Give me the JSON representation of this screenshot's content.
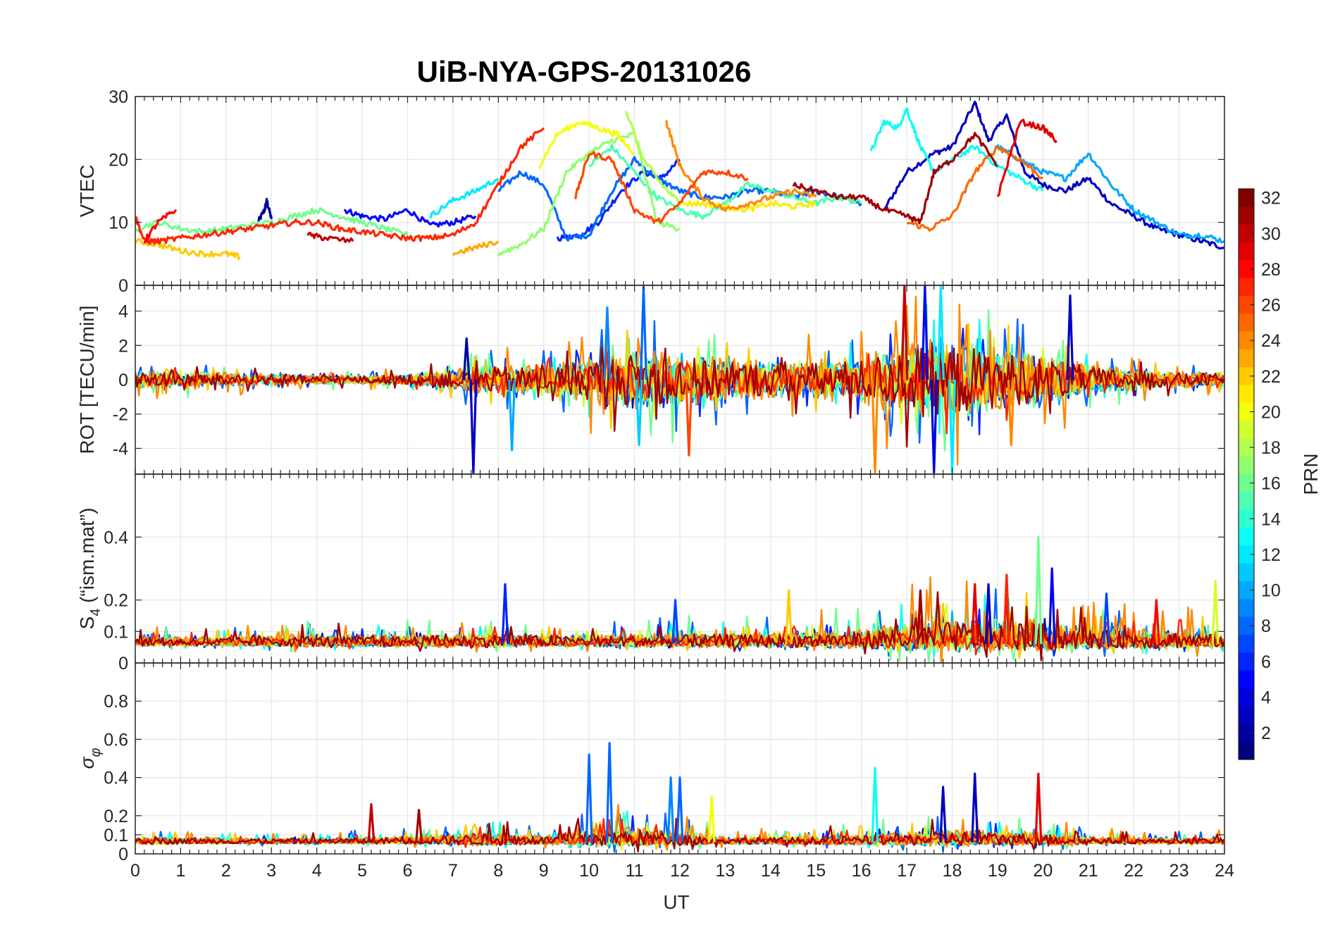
{
  "chart_data": {
    "type": "line",
    "title": "UiB-NYA-GPS-20131026",
    "xlabel": "UT",
    "xlim": [
      0,
      24
    ],
    "xticks": [
      "0",
      "1",
      "2",
      "3",
      "4",
      "5",
      "6",
      "7",
      "8",
      "9",
      "10",
      "11",
      "12",
      "13",
      "14",
      "15",
      "16",
      "17",
      "18",
      "19",
      "20",
      "21",
      "22",
      "23",
      "24"
    ],
    "grid": true,
    "panels": [
      {
        "id": "vtec",
        "ylabel": "VTEC",
        "ylim": [
          0,
          30
        ],
        "yticks": [
          0,
          10,
          20,
          30
        ],
        "ytick_labels": [
          "0",
          "10",
          "20",
          "30"
        ],
        "series": [
          {
            "prn": 2,
            "x": [
              2.7,
              2.85,
              2.9,
              3.0
            ],
            "y": [
              10,
              12,
              13.5,
              10.5
            ]
          },
          {
            "prn": 3,
            "x": [
              16.5,
              17,
              17.6,
              18,
              18.5,
              18.8,
              19.2,
              19.6,
              20,
              20.5,
              21,
              21.5,
              22,
              22.5,
              23,
              23.5,
              24
            ],
            "y": [
              12,
              18,
              21,
              22,
              29,
              23,
              27,
              18,
              16,
              15,
              17,
              13,
              11,
              9,
              8,
              7,
              6
            ]
          },
          {
            "prn": 5,
            "x": [
              4.6,
              5,
              5.5,
              6,
              6.5,
              7,
              7.5
            ],
            "y": [
              12,
              11,
              10.5,
              12,
              9.5,
              10,
              11
            ]
          },
          {
            "prn": 6,
            "x": [
              9.3,
              9.8,
              10.2,
              10.7,
              11.2,
              11.6,
              12
            ],
            "y": [
              7.5,
              8,
              10,
              15,
              18,
              17,
              20
            ]
          },
          {
            "prn": 8,
            "x": [
              8,
              8.5,
              9,
              9.5,
              10,
              10.5,
              11,
              11.5,
              12,
              12.5,
              13,
              13.5,
              14,
              14.5,
              15,
              15.5,
              16
            ],
            "y": [
              15,
              18,
              16,
              7.5,
              8,
              15,
              20,
              17,
              15,
              14,
              14,
              15,
              15,
              14,
              15,
              14,
              13
            ]
          },
          {
            "prn": 10,
            "x": [
              19,
              19.5,
              20,
              20.5,
              21,
              21.5,
              22,
              22.5,
              23,
              23.5,
              24
            ],
            "y": [
              22,
              20,
              18,
              17,
              21,
              16,
              12,
              10,
              8,
              8,
              7
            ]
          },
          {
            "prn": 12,
            "x": [
              6.5,
              7,
              7.5,
              8
            ],
            "y": [
              11,
              13.5,
              15,
              17
            ]
          },
          {
            "prn": 13,
            "x": [
              16.2,
              16.5,
              16.8,
              17,
              17.3,
              17.6,
              18,
              18.5,
              19,
              19.5,
              20
            ],
            "y": [
              21,
              26,
              25,
              28,
              22,
              18,
              20,
              22,
              19,
              17,
              15
            ]
          },
          {
            "prn": 15,
            "x": [
              10,
              10.5,
              11,
              11.5,
              12,
              12.5,
              13,
              13.5,
              14,
              14.5,
              15,
              15.5,
              16
            ],
            "y": [
              19,
              22,
              18,
              14,
              12,
              11,
              13,
              16,
              15,
              14,
              13,
              14,
              13
            ]
          },
          {
            "prn": 16,
            "x": [
              0,
              0.5,
              1,
              1.5,
              2,
              2.5,
              3,
              3.5,
              4,
              4.5,
              5,
              5.5,
              6
            ],
            "y": [
              9,
              10,
              9,
              8.5,
              9,
              9.5,
              10,
              11,
              12,
              11,
              10,
              9,
              8
            ]
          },
          {
            "prn": 17,
            "x": [
              8,
              8.5,
              9,
              9.5,
              10,
              10.5,
              11,
              11.5,
              12
            ],
            "y": [
              5,
              6.5,
              9,
              18,
              21,
              23,
              24,
              10,
              9
            ]
          },
          {
            "prn": 18,
            "x": [
              10.8,
              11.2,
              11.6,
              12
            ],
            "y": [
              28,
              20,
              16,
              13
            ]
          },
          {
            "prn": 20,
            "x": [
              8.9,
              9.3,
              9.8,
              10.2,
              10.6,
              11
            ],
            "y": [
              19,
              24,
              26,
              25,
              24,
              21
            ]
          },
          {
            "prn": 21,
            "x": [
              12,
              12.5,
              13,
              13.5,
              14,
              14.5,
              15
            ],
            "y": [
              13,
              13,
              12.5,
              12,
              13,
              12.5,
              13
            ]
          },
          {
            "prn": 22,
            "x": [
              0,
              0.5,
              1,
              1.5,
              2,
              2.3
            ],
            "y": [
              7,
              6.5,
              5.5,
              5,
              5,
              4.5
            ]
          },
          {
            "prn": 23,
            "x": [
              7,
              7.5,
              8
            ],
            "y": [
              5,
              6,
              7
            ]
          },
          {
            "prn": 24,
            "x": [
              11.7,
              12,
              12.5,
              13,
              13.5,
              14,
              14.5,
              15
            ],
            "y": [
              26,
              19,
              14,
              12,
              13,
              14,
              15,
              14
            ]
          },
          {
            "prn": 25,
            "x": [
              17,
              17.5,
              18,
              18.5,
              19,
              19.5,
              20
            ],
            "y": [
              10,
              9,
              11,
              18,
              22,
              20,
              17
            ]
          },
          {
            "prn": 26,
            "x": [
              9.7,
              10,
              10.5,
              11,
              11.5,
              12,
              12.5,
              13,
              13.5
            ],
            "y": [
              14,
              21,
              20,
              12,
              10,
              13,
              18,
              18,
              17
            ]
          },
          {
            "prn": 27,
            "x": [
              0,
              0.2,
              0.5,
              1,
              1.5,
              2,
              2.5,
              3,
              3.5,
              4,
              4.5,
              5,
              5.5,
              6,
              6.5,
              7,
              7.5,
              8,
              8.5,
              9
            ],
            "y": [
              11,
              7,
              7,
              7.5,
              8,
              8.5,
              9,
              9.5,
              10,
              10,
              9,
              8.5,
              8,
              7.5,
              7.5,
              8,
              10,
              16,
              22,
              25
            ]
          },
          {
            "prn": 28,
            "x": [
              0.2,
              0.5,
              0.9
            ],
            "y": [
              7,
              10,
              12
            ]
          },
          {
            "prn": 29,
            "x": [
              19,
              19.5,
              20,
              20.3
            ],
            "y": [
              14,
              26,
              25,
              23
            ]
          },
          {
            "prn": 30,
            "x": [
              3.8,
              4.2,
              4.8
            ],
            "y": [
              8,
              7.5,
              7
            ]
          },
          {
            "prn": 31,
            "x": [
              14.5,
              15,
              15.5,
              16,
              16.5,
              17,
              17.3,
              17.6,
              18,
              18.5,
              19
            ],
            "y": [
              16,
              15,
              14,
              14,
              12,
              11,
              10,
              18,
              20,
              24,
              19
            ]
          }
        ]
      },
      {
        "id": "rot",
        "ylabel": "ROT [TECU/min]",
        "ylim": [
          -5.5,
          5.5
        ],
        "yticks": [
          -4,
          -2,
          0,
          2,
          4
        ],
        "ytick_labels": [
          "-4",
          "-2",
          "0",
          "2",
          "4"
        ],
        "noise_envelope": {
          "x": [
            0,
            1,
            2,
            3,
            4,
            5,
            6,
            7,
            8,
            9,
            10,
            11,
            12,
            13,
            14,
            15,
            16,
            17,
            18,
            19,
            20,
            21,
            22,
            23,
            24
          ],
          "amplitude": [
            0.8,
            0.7,
            0.6,
            0.5,
            0.4,
            0.4,
            0.5,
            0.9,
            1.3,
            1.2,
            2.0,
            2.6,
            2.4,
            1.8,
            1.6,
            1.7,
            2.0,
            3.2,
            3.6,
            2.8,
            2.2,
            1.3,
            0.9,
            0.7,
            0.6
          ]
        },
        "spikes": [
          {
            "x": 7.3,
            "y": 2.4,
            "prn": 2
          },
          {
            "x": 7.45,
            "y": -5.4,
            "prn": 3
          },
          {
            "x": 8.3,
            "y": -4.1,
            "prn": 10
          },
          {
            "x": 10.4,
            "y": 4.2,
            "prn": 9
          },
          {
            "x": 11.2,
            "y": 5.4,
            "prn": 8
          },
          {
            "x": 11.1,
            "y": -3.8,
            "prn": 11
          },
          {
            "x": 12.2,
            "y": -4.4,
            "prn": 26
          },
          {
            "x": 16.3,
            "y": -5.4,
            "prn": 24
          },
          {
            "x": 16.95,
            "y": 5.5,
            "prn": 30
          },
          {
            "x": 17.4,
            "y": 5.5,
            "prn": 5
          },
          {
            "x": 17.75,
            "y": 5.5,
            "prn": 12
          },
          {
            "x": 17.6,
            "y": -5.4,
            "prn": 4
          },
          {
            "x": 18.0,
            "y": -5.4,
            "prn": 12
          },
          {
            "x": 19.3,
            "y": -3.8,
            "prn": 24
          },
          {
            "x": 20.6,
            "y": 4.9,
            "prn": 3
          }
        ]
      },
      {
        "id": "s4",
        "ylabel": "S4 (\"ism.mat\")",
        "ylim": [
          0,
          0.6
        ],
        "yticks": [
          0,
          0.1,
          0.2,
          0.4
        ],
        "ytick_labels": [
          "0",
          "0.1",
          "0.2",
          "0.4"
        ],
        "baseline": 0.06,
        "noise_envelope": {
          "x": [
            0,
            2,
            4,
            6,
            8,
            10,
            12,
            14,
            16,
            17,
            18,
            19,
            20,
            21,
            22,
            23,
            24
          ],
          "amplitude": [
            0.04,
            0.04,
            0.05,
            0.05,
            0.06,
            0.05,
            0.06,
            0.06,
            0.08,
            0.12,
            0.14,
            0.14,
            0.13,
            0.09,
            0.08,
            0.08,
            0.06
          ]
        },
        "spikes": [
          {
            "x": 8.15,
            "y": 0.25,
            "prn": 6
          },
          {
            "x": 11.9,
            "y": 0.2,
            "prn": 7
          },
          {
            "x": 14.4,
            "y": 0.23,
            "prn": 22
          },
          {
            "x": 17.3,
            "y": 0.23,
            "prn": 31
          },
          {
            "x": 18.5,
            "y": 0.25,
            "prn": 29
          },
          {
            "x": 18.8,
            "y": 0.25,
            "prn": 3
          },
          {
            "x": 19.2,
            "y": 0.28,
            "prn": 27
          },
          {
            "x": 19.9,
            "y": 0.4,
            "prn": 16
          },
          {
            "x": 20.2,
            "y": 0.3,
            "prn": 5
          },
          {
            "x": 21.4,
            "y": 0.22,
            "prn": 7
          },
          {
            "x": 22.5,
            "y": 0.2,
            "prn": 28
          },
          {
            "x": 23.8,
            "y": 0.26,
            "prn": 19
          }
        ]
      },
      {
        "id": "sigma_phi",
        "ylabel": "σφ",
        "ylim": [
          0,
          1
        ],
        "yticks": [
          0,
          0.1,
          0.2,
          0.4,
          0.6,
          0.8
        ],
        "ytick_labels": [
          "0",
          "0.1",
          "0.2",
          "0.4",
          "0.6",
          "0.8"
        ],
        "baseline": 0.06,
        "noise_envelope": {
          "x": [
            0,
            2,
            4,
            6,
            8,
            9,
            10,
            11,
            12,
            13,
            14,
            16,
            17,
            18,
            19,
            20,
            21,
            22,
            24
          ],
          "amplitude": [
            0.05,
            0.04,
            0.04,
            0.05,
            0.1,
            0.06,
            0.12,
            0.14,
            0.1,
            0.05,
            0.05,
            0.07,
            0.09,
            0.12,
            0.1,
            0.09,
            0.05,
            0.04,
            0.04
          ]
        },
        "spikes": [
          {
            "x": 10.0,
            "y": 0.52,
            "prn": 8
          },
          {
            "x": 10.45,
            "y": 0.58,
            "prn": 8
          },
          {
            "x": 11.8,
            "y": 0.4,
            "prn": 9
          },
          {
            "x": 12.0,
            "y": 0.4,
            "prn": 8
          },
          {
            "x": 5.2,
            "y": 0.26,
            "prn": 30
          },
          {
            "x": 6.25,
            "y": 0.23,
            "prn": 31
          },
          {
            "x": 16.3,
            "y": 0.45,
            "prn": 13
          },
          {
            "x": 17.8,
            "y": 0.35,
            "prn": 3
          },
          {
            "x": 18.5,
            "y": 0.42,
            "prn": 3
          },
          {
            "x": 19.9,
            "y": 0.42,
            "prn": 29
          },
          {
            "x": 12.7,
            "y": 0.3,
            "prn": 20
          }
        ]
      }
    ],
    "colorbar": {
      "label": "PRN",
      "colormap": "jet",
      "range": [
        1,
        32
      ],
      "ticks": [
        2,
        4,
        6,
        8,
        10,
        12,
        14,
        16,
        18,
        20,
        22,
        24,
        26,
        28,
        30,
        32
      ]
    }
  }
}
